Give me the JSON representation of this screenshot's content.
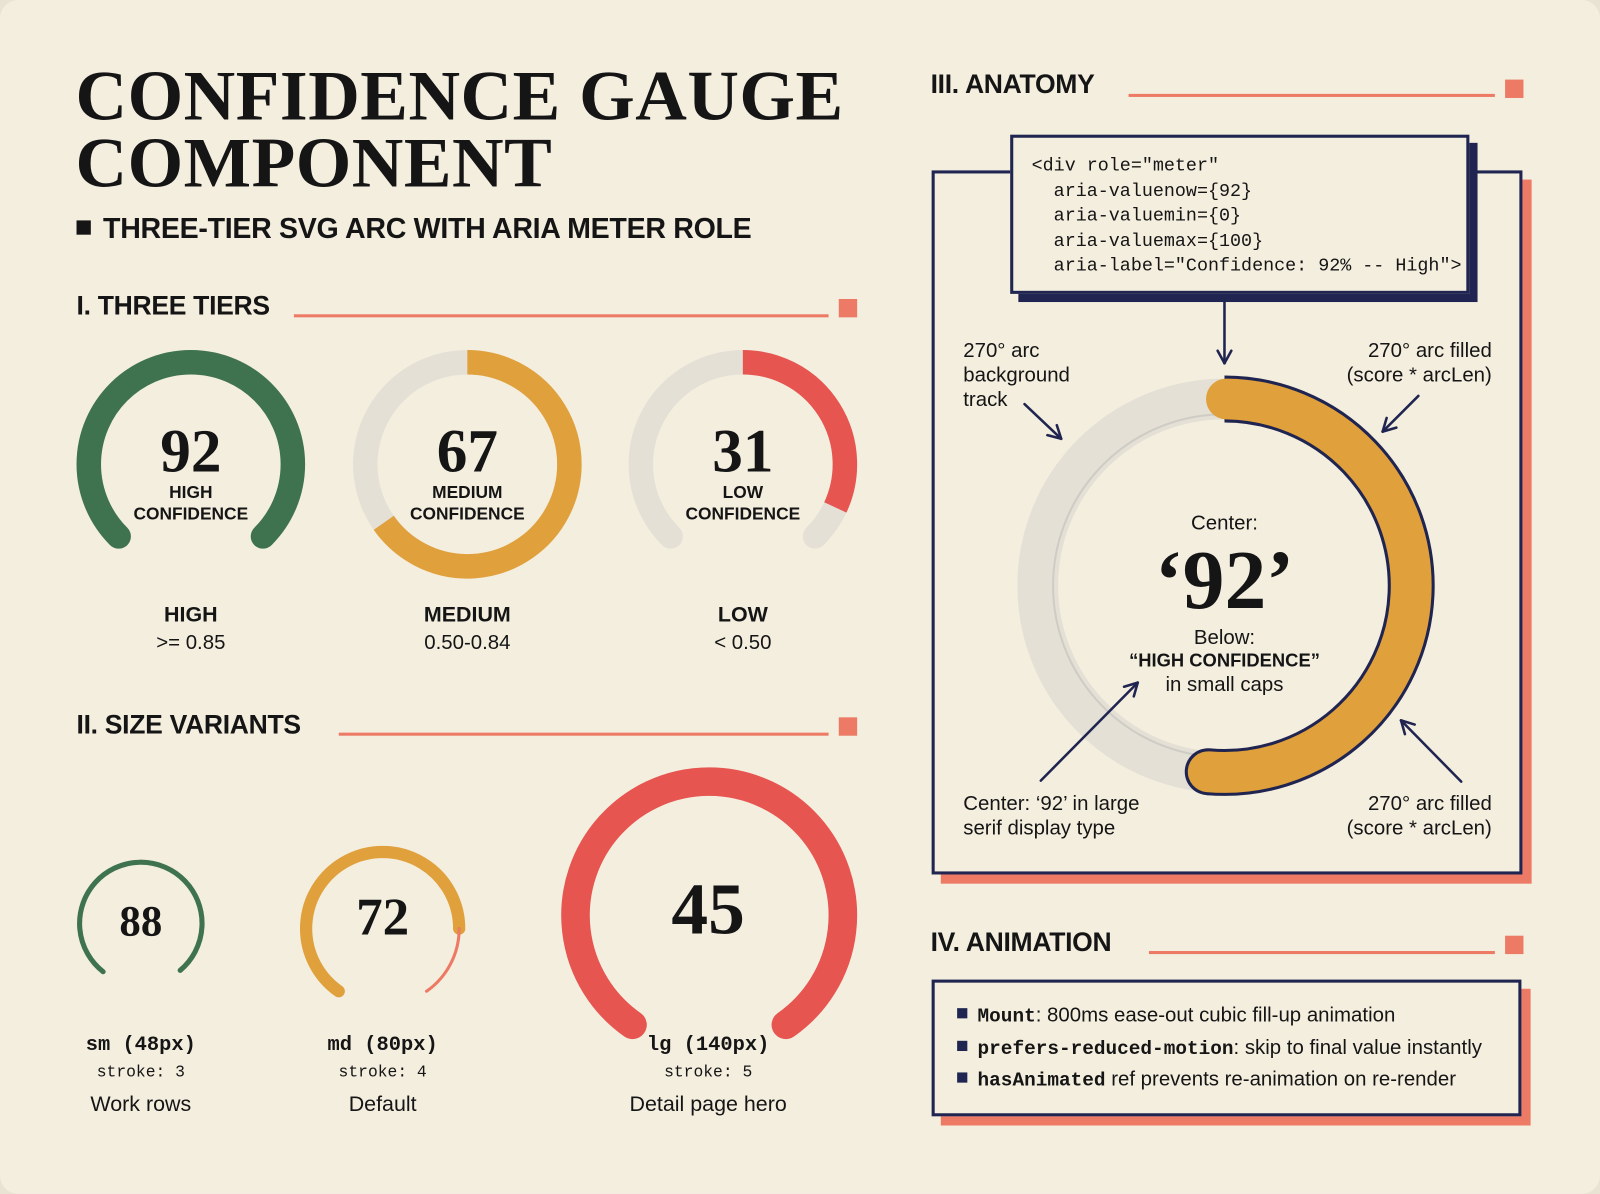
{
  "header": {
    "title_line1": "CONFIDENCE GAUGE",
    "title_line2": "COMPONENT",
    "subtitle": "THREE-TIER SVG ARC WITH ARIA METER ROLE"
  },
  "colors": {
    "high": "#3f7350",
    "medium": "#e0a03c",
    "low": "#e65550",
    "track": "#e4e0d5",
    "navy": "#1f2550",
    "accent": "#ec7a64",
    "background": "#f4eedf"
  },
  "tiers": {
    "heading": "I. THREE TIERS",
    "items": [
      {
        "value": "92",
        "label_line1": "HIGH",
        "label_line2": "CONFIDENCE",
        "name": "HIGH",
        "range": ">= 0.85",
        "color": "#3f7350"
      },
      {
        "value": "67",
        "label_line1": "MEDIUM",
        "label_line2": "CONFIDENCE",
        "name": "MEDIUM",
        "range": "0.50-0.84",
        "color": "#e0a03c"
      },
      {
        "value": "31",
        "label_line1": "LOW",
        "label_line2": "CONFIDENCE",
        "name": "LOW",
        "range": "< 0.50",
        "color": "#e65550"
      }
    ]
  },
  "sizes": {
    "heading": "II. SIZE VARIANTS",
    "items": [
      {
        "value": "88",
        "size": "sm (48px)",
        "stroke": "stroke: 3",
        "use": "Work rows",
        "color": "#3f7350"
      },
      {
        "value": "72",
        "size": "md (80px)",
        "stroke": "stroke: 4",
        "use": "Default",
        "color": "#e0a03c"
      },
      {
        "value": "45",
        "size": "lg (140px)",
        "stroke": "stroke: 5",
        "use": "Detail page hero",
        "color": "#e65550"
      }
    ]
  },
  "anatomy": {
    "heading": "III. ANATOMY",
    "code": [
      "<div role=\"meter\"",
      "  aria-valuenow={92}",
      "  aria-valuemin={0}",
      "  aria-valuemax={100}",
      "  aria-label=\"Confidence: 92% -- High\">"
    ],
    "track_label": [
      "270° arc",
      "background",
      "track"
    ],
    "fill_label_top": [
      "270° arc filled",
      "(score * arcLen)"
    ],
    "center_label": [
      "Center: ‘92’ in large",
      "serif display type"
    ],
    "fill_label_bottom": [
      "270° arc filled",
      "(score * arcLen)"
    ],
    "center_caption": "Center:",
    "center_value": "‘92’",
    "below_caption": "Below:",
    "below_value": "“HIGH CONFIDENCE”",
    "below_note": "in small caps"
  },
  "animation": {
    "heading": "IV. ANIMATION",
    "items": [
      {
        "key": "Mount",
        "text": ": 800ms ease-out cubic fill-up animation"
      },
      {
        "key": "prefers-reduced-motion",
        "text": ": skip to final value instantly"
      },
      {
        "key": "hasAnimated",
        "text": " ref prevents re-animation on re-render"
      }
    ]
  }
}
